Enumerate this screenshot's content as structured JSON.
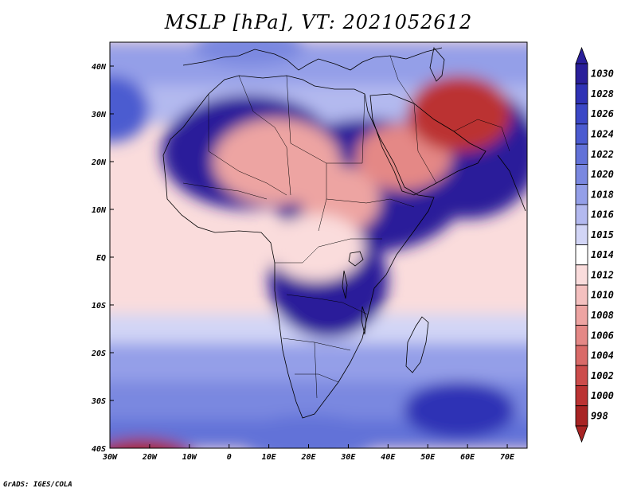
{
  "title": "MSLP [hPa], VT: 2021052612",
  "credit": "GrADS: IGES/COLA",
  "map": {
    "lon_range": [
      -30,
      75
    ],
    "lat_range": [
      -40,
      45
    ],
    "lon_ticks": [
      {
        "value": -30,
        "label": "30W"
      },
      {
        "value": -20,
        "label": "20W"
      },
      {
        "value": -10,
        "label": "10W"
      },
      {
        "value": 0,
        "label": "0"
      },
      {
        "value": 10,
        "label": "10E"
      },
      {
        "value": 20,
        "label": "20E"
      },
      {
        "value": 30,
        "label": "30E"
      },
      {
        "value": 40,
        "label": "40E"
      },
      {
        "value": 50,
        "label": "50E"
      },
      {
        "value": 60,
        "label": "60E"
      },
      {
        "value": 70,
        "label": "70E"
      }
    ],
    "lat_ticks": [
      {
        "value": 40,
        "label": "40N"
      },
      {
        "value": 30,
        "label": "30N"
      },
      {
        "value": 20,
        "label": "20N"
      },
      {
        "value": 10,
        "label": "10N"
      },
      {
        "value": 0,
        "label": "EQ"
      },
      {
        "value": -10,
        "label": "10S"
      },
      {
        "value": -20,
        "label": "20S"
      },
      {
        "value": -30,
        "label": "30S"
      },
      {
        "value": -40,
        "label": "40S"
      }
    ],
    "pressure_features": [
      {
        "name": "azores-high-west",
        "lon": -30,
        "lat": 31,
        "value": 1024,
        "rx": 10,
        "ry": 7
      },
      {
        "name": "europe-high",
        "lon": 5,
        "lat": 44,
        "value": 1020,
        "rx": 14,
        "ry": 4
      },
      {
        "name": "saharan-trough",
        "lon": 12,
        "lat": 20,
        "value": 1008,
        "rx": 16,
        "ry": 9
      },
      {
        "name": "sudan-low",
        "lon": 28,
        "lat": 12,
        "value": 1007,
        "rx": 10,
        "ry": 7
      },
      {
        "name": "arabian-low",
        "lon": 44,
        "lat": 21,
        "value": 1005,
        "rx": 12,
        "ry": 7
      },
      {
        "name": "iran-low",
        "lon": 58,
        "lat": 30,
        "value": 1000,
        "rx": 13,
        "ry": 8
      },
      {
        "name": "eq-africa-trough",
        "lon": 22,
        "lat": 2,
        "value": 1011,
        "rx": 12,
        "ry": 7
      },
      {
        "name": "mascarene-high",
        "lon": 58,
        "lat": -32,
        "value": 1027,
        "rx": 14,
        "ry": 6
      },
      {
        "name": "sa-high",
        "lon": 20,
        "lat": -38,
        "value": 1022,
        "rx": 18,
        "ry": 5
      },
      {
        "name": "southern-low",
        "lon": -22,
        "lat": -43,
        "value": 998,
        "rx": 14,
        "ry": 5
      }
    ]
  },
  "colorbar": {
    "entries": [
      {
        "label": "1030",
        "color": "#2a1f9a"
      },
      {
        "label": "1028",
        "color": "#2f32b5"
      },
      {
        "label": "1026",
        "color": "#3b47c6"
      },
      {
        "label": "1024",
        "color": "#4b5bd0"
      },
      {
        "label": "1022",
        "color": "#6272d8"
      },
      {
        "label": "1020",
        "color": "#7a88e0"
      },
      {
        "label": "1018",
        "color": "#949fe8"
      },
      {
        "label": "1016",
        "color": "#b3b9ef"
      },
      {
        "label": "1015",
        "color": "#d2d5f6"
      },
      {
        "label": "1014",
        "color": "#ffffff"
      },
      {
        "label": "1012",
        "color": "#fadcdc"
      },
      {
        "label": "1010",
        "color": "#f4c0bf"
      },
      {
        "label": "1008",
        "color": "#eda4a2"
      },
      {
        "label": "1006",
        "color": "#e48886"
      },
      {
        "label": "1004",
        "color": "#d96a68"
      },
      {
        "label": "1002",
        "color": "#cc4c4b"
      },
      {
        "label": "1000",
        "color": "#bb3333"
      },
      {
        "label": "998",
        "color": "#a82424"
      }
    ]
  }
}
